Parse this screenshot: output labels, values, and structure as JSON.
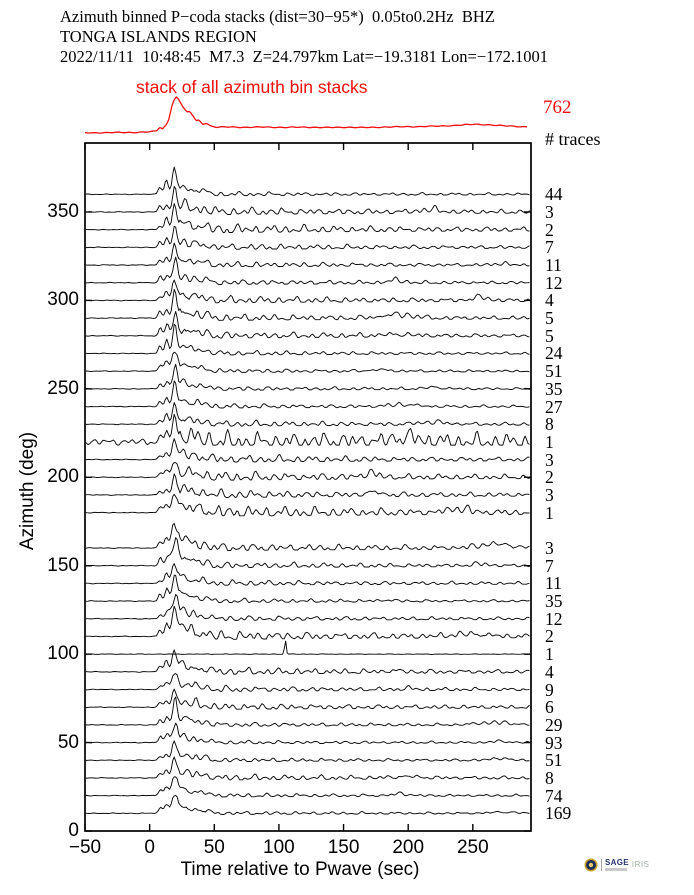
{
  "header": {
    "line1": "Azimuth binned P−coda stacks (dist=30−95*)  0.05to0.2Hz  BHZ",
    "line2": "TONGA ISLANDS REGION",
    "line3": "2022/11/11  10:48:45  M7.3  Z=24.797km Lat=−19.3181 Lon=−172.1001"
  },
  "stack": {
    "label": "stack of all azimuth bin stacks",
    "total": "762",
    "traces_header": "# traces"
  },
  "colors": {
    "accent_red": "#f30d0d",
    "ink": "#000000",
    "logo_navy": "#26316e",
    "logo_gold": "#c9a227",
    "logo_muted": "#a3b2a6"
  },
  "logo": {
    "primary": "SAGE",
    "secondary": "IRIS"
  },
  "chart_data": {
    "type": "line",
    "title": "Azimuth binned P−coda stacks (dist=30−95*) 0.05to0.2Hz BHZ",
    "subtitle": "TONGA ISLANDS REGION",
    "event": "2022/11/11 10:48:45 M7.3 Z=24.797km Lat=−19.3181 Lon=−172.1001",
    "xlabel": "Time relative to Pwave (sec)",
    "ylabel": "Azimuth (deg)",
    "xlim": [
      -50,
      295
    ],
    "ylim": [
      0,
      389
    ],
    "xticks": [
      -50,
      0,
      50,
      100,
      150,
      200,
      250
    ],
    "yticks": [
      0,
      50,
      100,
      150,
      200,
      250,
      300,
      350
    ],
    "grid": false,
    "bin_width_deg": 10,
    "p_coda_peak_time_sec": 20,
    "total_traces": 762,
    "bins": [
      {
        "az": 360,
        "count": 44
      },
      {
        "az": 350,
        "count": 3
      },
      {
        "az": 340,
        "count": 2
      },
      {
        "az": 330,
        "count": 7
      },
      {
        "az": 320,
        "count": 11
      },
      {
        "az": 310,
        "count": 12
      },
      {
        "az": 300,
        "count": 4
      },
      {
        "az": 290,
        "count": 5
      },
      {
        "az": 280,
        "count": 5
      },
      {
        "az": 270,
        "count": 24
      },
      {
        "az": 260,
        "count": 51
      },
      {
        "az": 250,
        "count": 35
      },
      {
        "az": 240,
        "count": 27
      },
      {
        "az": 230,
        "count": 8
      },
      {
        "az": 220,
        "count": 1,
        "style": "noisy"
      },
      {
        "az": 210,
        "count": 3
      },
      {
        "az": 200,
        "count": 2
      },
      {
        "az": 190,
        "count": 3
      },
      {
        "az": 180,
        "count": 1
      },
      {
        "az": 160,
        "count": 3
      },
      {
        "az": 150,
        "count": 7
      },
      {
        "az": 140,
        "count": 11
      },
      {
        "az": 130,
        "count": 35
      },
      {
        "az": 120,
        "count": 12
      },
      {
        "az": 110,
        "count": 2
      },
      {
        "az": 100,
        "count": 1,
        "style": "spike",
        "spike_time_sec": 105
      },
      {
        "az": 90,
        "count": 4
      },
      {
        "az": 80,
        "count": 9
      },
      {
        "az": 70,
        "count": 6
      },
      {
        "az": 60,
        "count": 29
      },
      {
        "az": 50,
        "count": 93
      },
      {
        "az": 40,
        "count": 51
      },
      {
        "az": 30,
        "count": 8
      },
      {
        "az": 20,
        "count": 74
      },
      {
        "az": 10,
        "count": 169
      }
    ],
    "stack_trace": {
      "label": "stack of all azimuth bin stacks",
      "count": 762,
      "anchors": [
        [
          -50,
          0.7
        ],
        [
          -30,
          0.9
        ],
        [
          -12,
          1.1
        ],
        [
          0,
          1.6
        ],
        [
          5,
          2.4
        ],
        [
          8,
          6.5
        ],
        [
          10,
          4.5
        ],
        [
          13,
          9
        ],
        [
          15,
          15
        ],
        [
          17,
          27
        ],
        [
          19,
          34
        ],
        [
          21,
          36.5
        ],
        [
          23,
          33
        ],
        [
          26,
          26
        ],
        [
          29,
          21
        ],
        [
          31,
          22
        ],
        [
          34,
          17
        ],
        [
          36,
          12.5
        ],
        [
          38,
          13.5
        ],
        [
          41,
          9.5
        ],
        [
          44,
          10.5
        ],
        [
          47,
          7.5
        ],
        [
          52,
          6.2
        ],
        [
          62,
          6.6
        ],
        [
          75,
          6.1
        ],
        [
          90,
          6.5
        ],
        [
          105,
          6.0
        ],
        [
          120,
          6.4
        ],
        [
          135,
          5.9
        ],
        [
          150,
          6.3
        ],
        [
          165,
          5.9
        ],
        [
          180,
          6.4
        ],
        [
          195,
          6.7
        ],
        [
          210,
          7.0
        ],
        [
          225,
          7.4
        ],
        [
          240,
          8.4
        ],
        [
          252,
          9.2
        ],
        [
          262,
          8.8
        ],
        [
          272,
          7.8
        ],
        [
          283,
          7.1
        ],
        [
          293,
          6.7
        ]
      ]
    }
  }
}
